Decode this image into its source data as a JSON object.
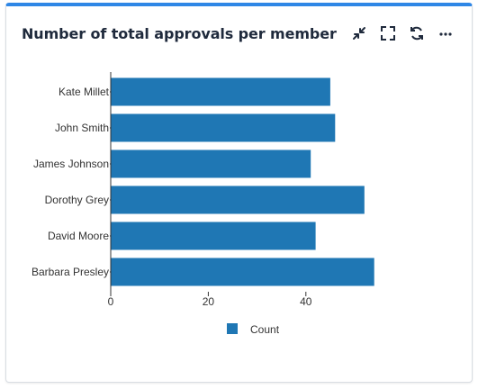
{
  "widget": {
    "title": "Number of total approvals per member",
    "toolbar": [
      {
        "name": "collapse-icon",
        "icon": "arrows-in"
      },
      {
        "name": "expand-icon",
        "icon": "corners-out"
      },
      {
        "name": "refresh-icon",
        "icon": "refresh"
      },
      {
        "name": "more-icon",
        "icon": "ellipsis"
      }
    ],
    "accent_color": "#2f87e6"
  },
  "chart_data": {
    "type": "bar",
    "orientation": "horizontal",
    "categories": [
      "Kate Millet",
      "John Smith",
      "James Johnson",
      "Dorothy Grey",
      "David Moore",
      "Barbara Presley"
    ],
    "series": [
      {
        "name": "Count",
        "values": [
          45,
          46,
          41,
          52,
          42,
          54
        ],
        "color": "#1f77b4"
      }
    ],
    "xticks": [
      0,
      20,
      40
    ],
    "xlim": [
      0,
      55
    ],
    "legend": "bottom-center",
    "grid": false
  }
}
